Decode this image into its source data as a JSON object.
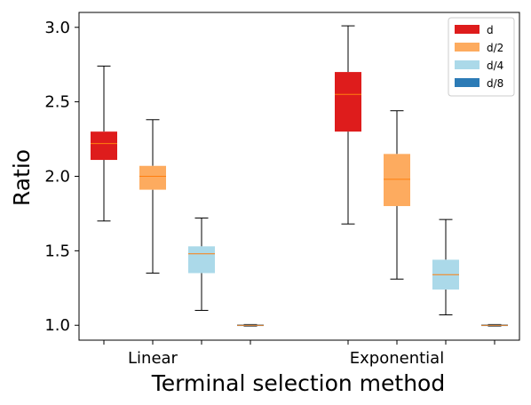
{
  "chart_data": {
    "type": "box",
    "title": "",
    "xlabel": "Terminal selection method",
    "ylabel": "Ratio",
    "ylim": [
      0.9,
      3.1
    ],
    "yticks": [
      "1.0",
      "1.5",
      "2.0",
      "2.5",
      "3.0"
    ],
    "categories": [
      "Linear",
      "Exponential"
    ],
    "legend": {
      "position": "top-right"
    },
    "series": [
      {
        "name": "d",
        "color": "#de1c1c",
        "boxes": [
          {
            "whislo": 1.7,
            "q1": 2.11,
            "med": 2.22,
            "q3": 2.3,
            "whishi": 2.74
          },
          {
            "whislo": 1.68,
            "q1": 2.3,
            "med": 2.55,
            "q3": 2.7,
            "whishi": 3.01
          }
        ]
      },
      {
        "name": "d/2",
        "color": "#fdab5f",
        "boxes": [
          {
            "whislo": 1.35,
            "q1": 1.91,
            "med": 2.0,
            "q3": 2.07,
            "whishi": 2.38
          },
          {
            "whislo": 1.31,
            "q1": 1.8,
            "med": 1.98,
            "q3": 2.15,
            "whishi": 2.44
          }
        ]
      },
      {
        "name": "d/4",
        "color": "#abd9e9",
        "boxes": [
          {
            "whislo": 1.1,
            "q1": 1.35,
            "med": 1.48,
            "q3": 1.53,
            "whishi": 1.72
          },
          {
            "whislo": 1.07,
            "q1": 1.24,
            "med": 1.34,
            "q3": 1.44,
            "whishi": 1.71
          }
        ]
      },
      {
        "name": "d/8",
        "color": "#2c7bb6",
        "boxes": [
          {
            "whislo": 0.995,
            "q1": 0.995,
            "med": 1.0,
            "q3": 1.005,
            "whishi": 1.005
          },
          {
            "whislo": 0.995,
            "q1": 0.995,
            "med": 1.0,
            "q3": 1.005,
            "whishi": 1.005
          }
        ]
      }
    ],
    "median_color": "#ff7f0e"
  }
}
